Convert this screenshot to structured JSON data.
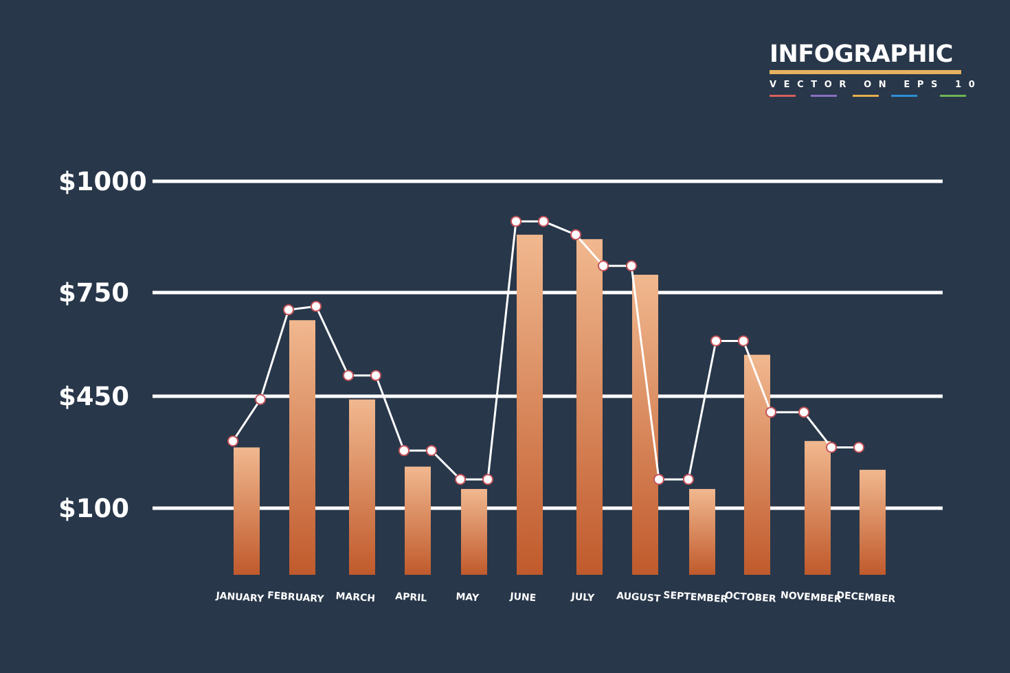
{
  "brand": {
    "title": "INFOGRAPHIC",
    "subtitle": "VECTOR ON EPS 10",
    "underline_color": "#e6b25f",
    "swatch_colors": [
      "#d6605a",
      "#8a6fc1",
      "#e6b04c",
      "#2f8fd6",
      "#6fb354"
    ]
  },
  "colors": {
    "background": "#28374a",
    "bar_top": "#f1b88f",
    "bar_bottom": "#c05a2c",
    "grid": "#ffffff",
    "line": "#ffffff",
    "marker_fill": "#ffffff",
    "marker_stroke": "#c5535a",
    "text": "#ffffff"
  },
  "chart_data": {
    "type": "bar",
    "title": "",
    "xlabel": "",
    "ylabel": "",
    "categories": [
      "JANUARY",
      "FEBRUARY",
      "MARCH",
      "APRIL",
      "MAY",
      "JUNE",
      "JULY",
      "AUGUST",
      "SEPTEMBER",
      "OCTOBER",
      "NOVEMBER",
      "DECEMBER"
    ],
    "y_ticks": [
      {
        "value": 100,
        "label": "$100"
      },
      {
        "value": 450,
        "label": "$450"
      },
      {
        "value": 750,
        "label": "$750"
      },
      {
        "value": 1000,
        "label": "$1000"
      }
    ],
    "ylim": [
      -100,
      1000
    ],
    "grid": true,
    "series": [
      {
        "type": "bar",
        "values": [
          290,
          670,
          440,
          230,
          160,
          880,
          870,
          790,
          160,
          570,
          310,
          220
        ]
      },
      {
        "type": "line",
        "points": [
          [
            0,
            310
          ],
          [
            0,
            440
          ],
          [
            1,
            700
          ],
          [
            1,
            710
          ],
          [
            2,
            510
          ],
          [
            2,
            510
          ],
          [
            3,
            280
          ],
          [
            3,
            280
          ],
          [
            4,
            190
          ],
          [
            4,
            190
          ],
          [
            5,
            910
          ],
          [
            5,
            910
          ],
          [
            6,
            880
          ],
          [
            6,
            810
          ],
          [
            7,
            810
          ],
          [
            7,
            190
          ],
          [
            8,
            190
          ],
          [
            8,
            610
          ],
          [
            9,
            610
          ],
          [
            9,
            400
          ],
          [
            10,
            400
          ],
          [
            10,
            290
          ],
          [
            11,
            290
          ]
        ]
      }
    ]
  }
}
